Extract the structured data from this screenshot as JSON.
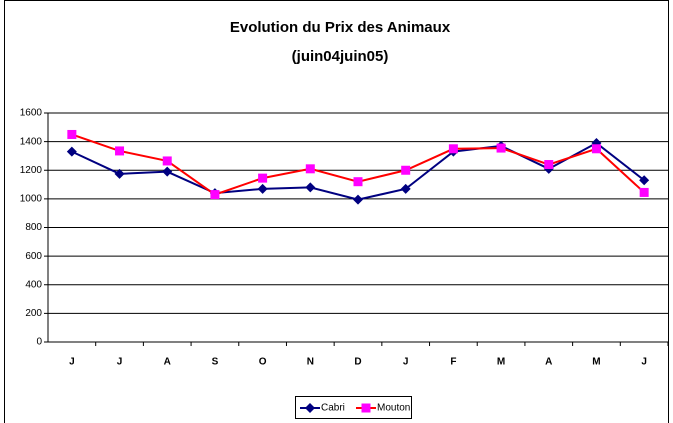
{
  "chart_data": {
    "type": "line",
    "title": "Evolution du Prix des Animaux",
    "subtitle": "(juin04juin05)",
    "categories": [
      "J",
      "J",
      "A",
      "S",
      "O",
      "N",
      "D",
      "J",
      "F",
      "M",
      "A",
      "M",
      "J"
    ],
    "series": [
      {
        "name": "Cabri",
        "color": "#000080",
        "marker": "diamond",
        "marker_color": "#000080",
        "values": [
          1330,
          1175,
          1190,
          1040,
          1070,
          1080,
          995,
          1070,
          1330,
          1370,
          1210,
          1390,
          1130
        ]
      },
      {
        "name": "Mouton",
        "color": "#ff0000",
        "marker": "square",
        "marker_color": "#ff00ff",
        "values": [
          1450,
          1335,
          1265,
          1030,
          1145,
          1210,
          1120,
          1200,
          1350,
          1355,
          1240,
          1350,
          1045
        ]
      }
    ],
    "ylim": [
      0,
      1600
    ],
    "yticks": [
      0,
      200,
      400,
      600,
      800,
      1000,
      1200,
      1400,
      1600
    ],
    "grid": true,
    "legend": "bottom"
  }
}
